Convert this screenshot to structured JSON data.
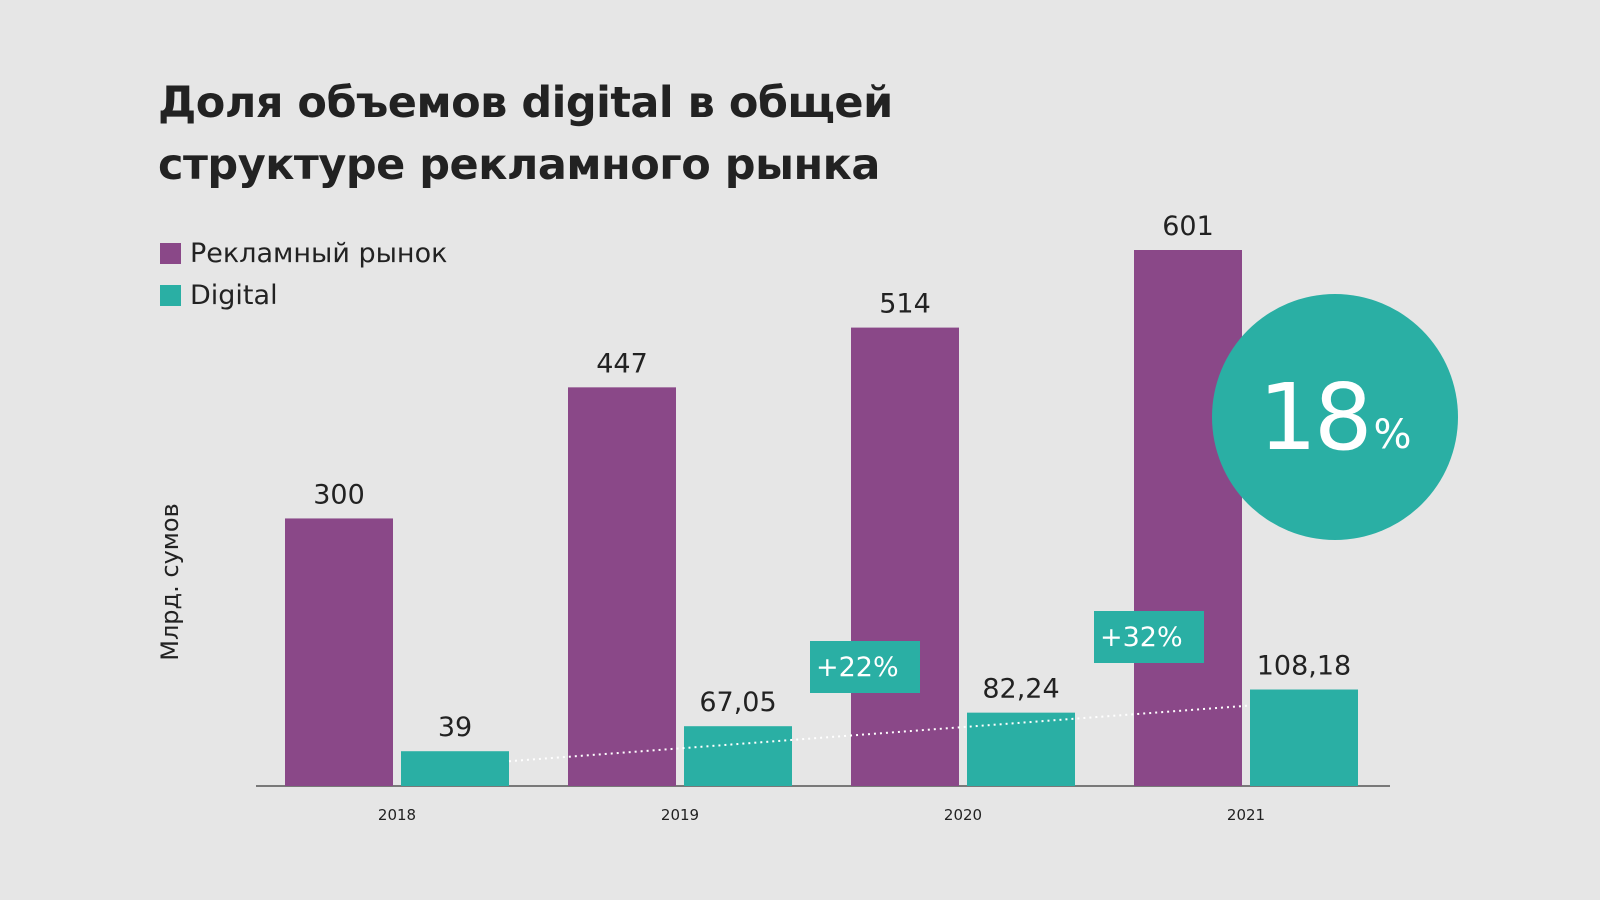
{
  "title_line1": "Доля объемов digital в общей",
  "title_line2": "структуре рекламного рынка",
  "legend": [
    {
      "label": "Рекламный рынок",
      "color": "#8a4888"
    },
    {
      "label": "Digital",
      "color": "#2aafa4"
    }
  ],
  "ylabel": "Млрд. сумов",
  "share_badge": {
    "value": "18",
    "unit": "%"
  },
  "growth_labels": [
    {
      "text": "+22%"
    },
    {
      "text": "+32%"
    }
  ],
  "chart_data": {
    "type": "bar",
    "categories": [
      "2018",
      "2019",
      "2020",
      "2021"
    ],
    "series": [
      {
        "name": "Рекламный рынок",
        "values": [
          300,
          447,
          514,
          601
        ],
        "labels": [
          "300",
          "447",
          "514",
          "601"
        ],
        "color": "#8a4888"
      },
      {
        "name": "Digital",
        "values": [
          39,
          67.05,
          82.24,
          108.18
        ],
        "labels": [
          "39",
          "67,05",
          "82,24",
          "108,18"
        ],
        "color": "#2aafa4"
      }
    ],
    "title": "Доля объемов digital в общей структуре рекламного рынка",
    "xlabel": "",
    "ylabel": "Млрд. сумов",
    "ylim": [
      0,
      601
    ],
    "grid": false,
    "legend_position": "top-left",
    "trendline": {
      "series": "Digital",
      "style": "dotted",
      "color": "#ffffff"
    }
  }
}
